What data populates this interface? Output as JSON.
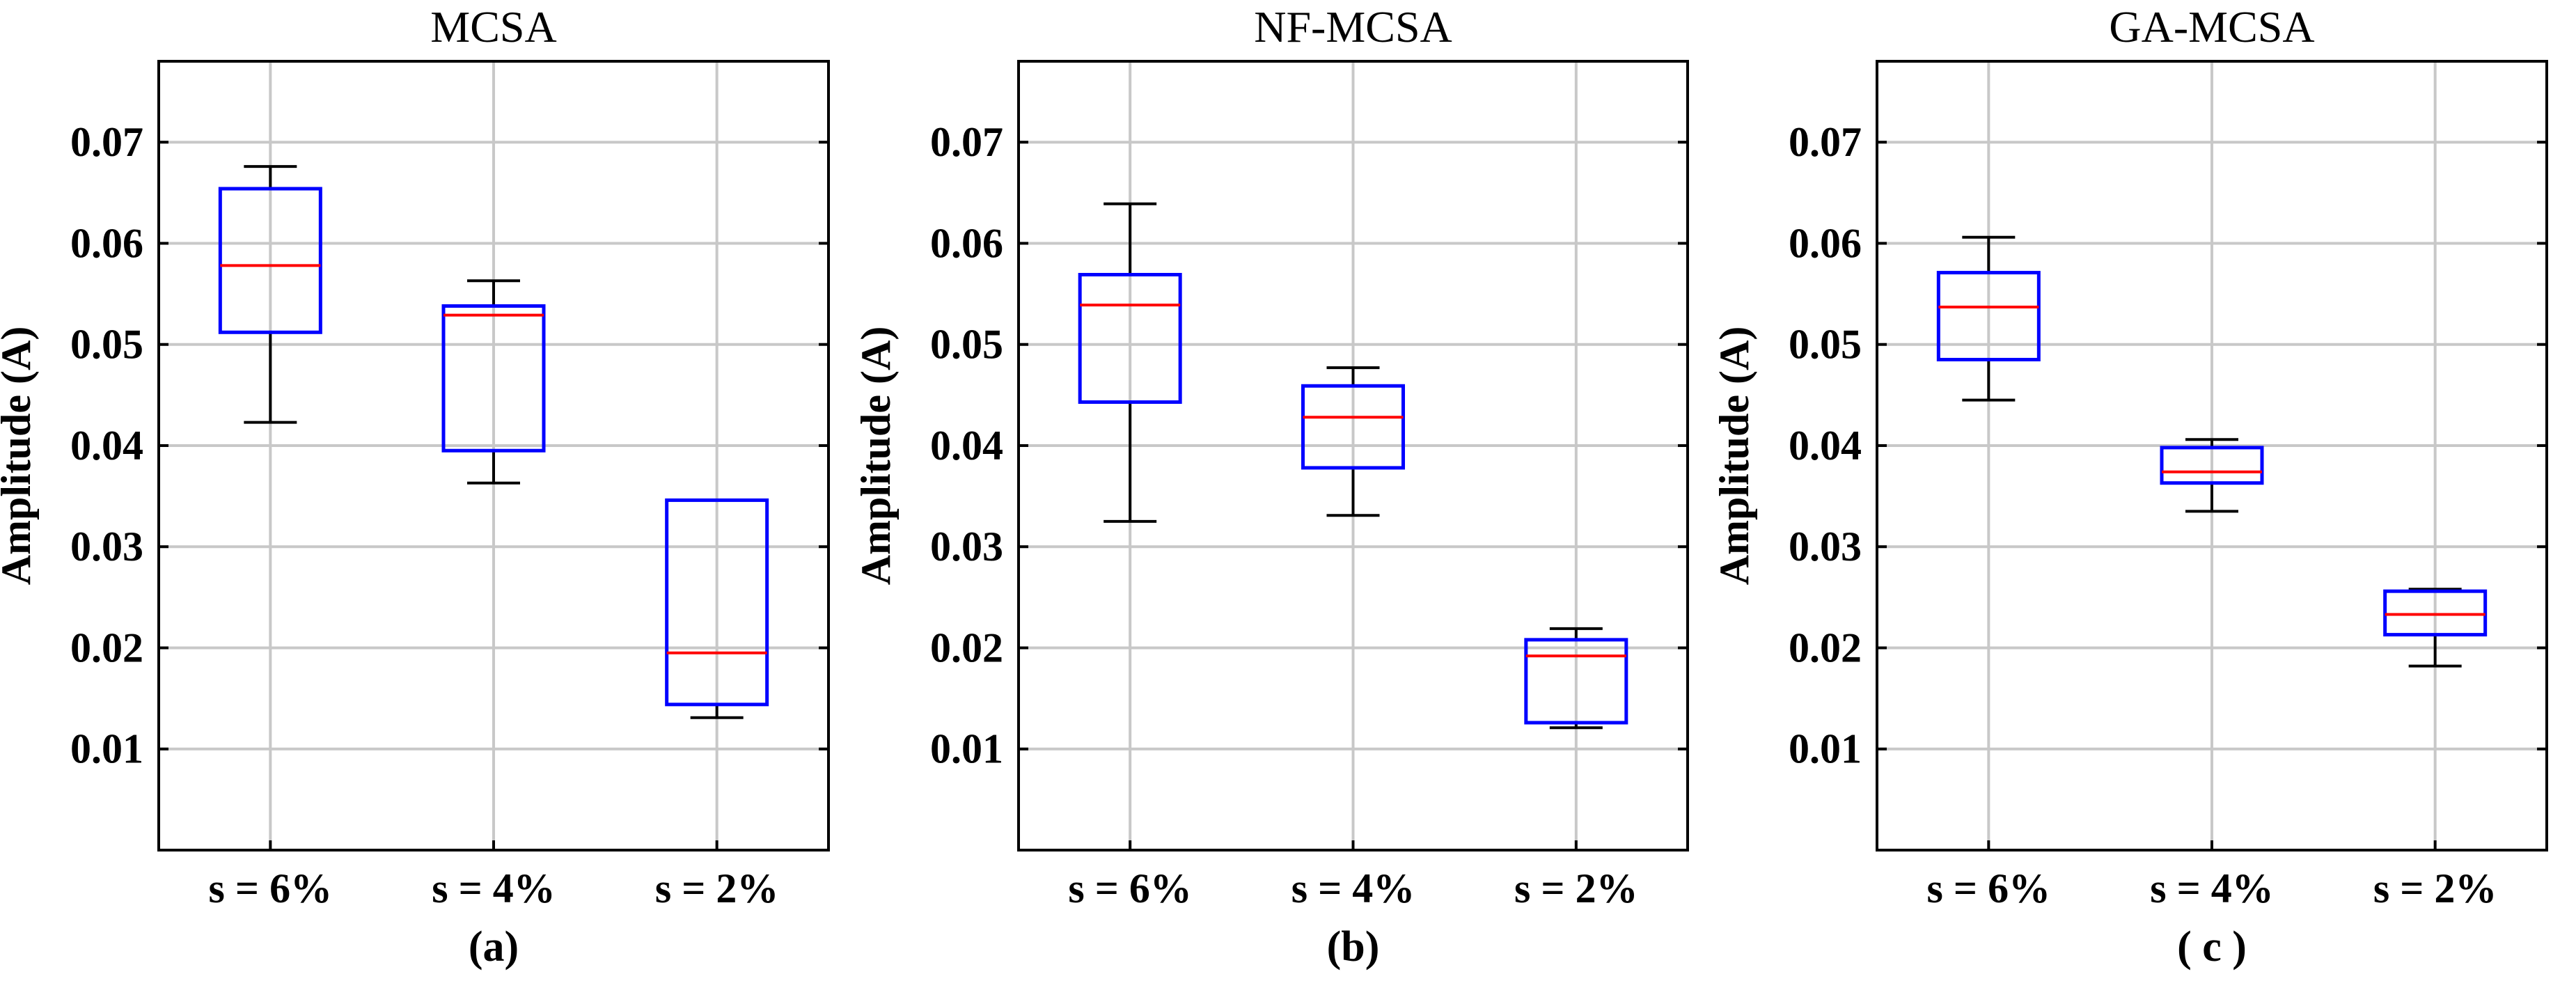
{
  "chart_data": [
    {
      "type": "box",
      "title": "MCSA",
      "ylabel": "Amplitude (A)",
      "xlabel": "",
      "caption": "(a)",
      "categories": [
        "s = 6%",
        "s = 4%",
        "s = 2%"
      ],
      "ylim": [
        0,
        0.078
      ],
      "yticks": [
        0.01,
        0.02,
        0.03,
        0.04,
        0.05,
        0.06,
        0.07
      ],
      "ytick_labels": [
        "0.01",
        "0.02",
        "0.03",
        "0.04",
        "0.05",
        "0.06",
        "0.07"
      ],
      "grid": true,
      "boxes": [
        {
          "category": "s = 6%",
          "whisker_low": 0.0423,
          "q1": 0.0512,
          "median": 0.0578,
          "q3": 0.0654,
          "whisker_high": 0.0676
        },
        {
          "category": "s = 4%",
          "whisker_low": 0.0363,
          "q1": 0.0395,
          "median": 0.0529,
          "q3": 0.0538,
          "whisker_high": 0.0563
        },
        {
          "category": "s = 2%",
          "whisker_low": 0.0131,
          "q1": 0.0144,
          "median": 0.0195,
          "q3": 0.0346,
          "whisker_high": 0.0346
        }
      ]
    },
    {
      "type": "box",
      "title": "NF-MCSA",
      "ylabel": "Amplitude (A)",
      "xlabel": "",
      "caption": "(b)",
      "categories": [
        "s = 6%",
        "s = 4%",
        "s = 2%"
      ],
      "ylim": [
        0,
        0.078
      ],
      "yticks": [
        0.01,
        0.02,
        0.03,
        0.04,
        0.05,
        0.06,
        0.07
      ],
      "ytick_labels": [
        "0.01",
        "0.02",
        "0.03",
        "0.04",
        "0.05",
        "0.06",
        "0.07"
      ],
      "grid": true,
      "boxes": [
        {
          "category": "s = 6%",
          "whisker_low": 0.0325,
          "q1": 0.0443,
          "median": 0.0539,
          "q3": 0.0569,
          "whisker_high": 0.0639
        },
        {
          "category": "s = 4%",
          "whisker_low": 0.0331,
          "q1": 0.0378,
          "median": 0.0428,
          "q3": 0.0459,
          "whisker_high": 0.0477
        },
        {
          "category": "s = 2%",
          "whisker_low": 0.0121,
          "q1": 0.0126,
          "median": 0.0192,
          "q3": 0.0208,
          "whisker_high": 0.0219
        }
      ]
    },
    {
      "type": "box",
      "title": "GA-MCSA",
      "ylabel": "Amplitude (A)",
      "xlabel": "",
      "caption": "( c )",
      "categories": [
        "s = 6%",
        "s = 4%",
        "s = 2%"
      ],
      "ylim": [
        0,
        0.078
      ],
      "yticks": [
        0.01,
        0.02,
        0.03,
        0.04,
        0.05,
        0.06,
        0.07
      ],
      "ytick_labels": [
        "0.01",
        "0.02",
        "0.03",
        "0.04",
        "0.05",
        "0.06",
        "0.07"
      ],
      "grid": true,
      "boxes": [
        {
          "category": "s = 6%",
          "whisker_low": 0.0445,
          "q1": 0.0485,
          "median": 0.0537,
          "q3": 0.0571,
          "whisker_high": 0.0606
        },
        {
          "category": "s = 4%",
          "whisker_low": 0.0335,
          "q1": 0.0363,
          "median": 0.0374,
          "q3": 0.0398,
          "whisker_high": 0.0406
        },
        {
          "category": "s = 2%",
          "whisker_low": 0.0182,
          "q1": 0.0213,
          "median": 0.0233,
          "q3": 0.0256,
          "whisker_high": 0.0258
        }
      ]
    }
  ],
  "style": {
    "box_color": "#0000ff",
    "median_color": "#ff0000",
    "whisker_color": "#000000",
    "grid_color": "#c8c8c8",
    "axis_color": "#000000"
  }
}
